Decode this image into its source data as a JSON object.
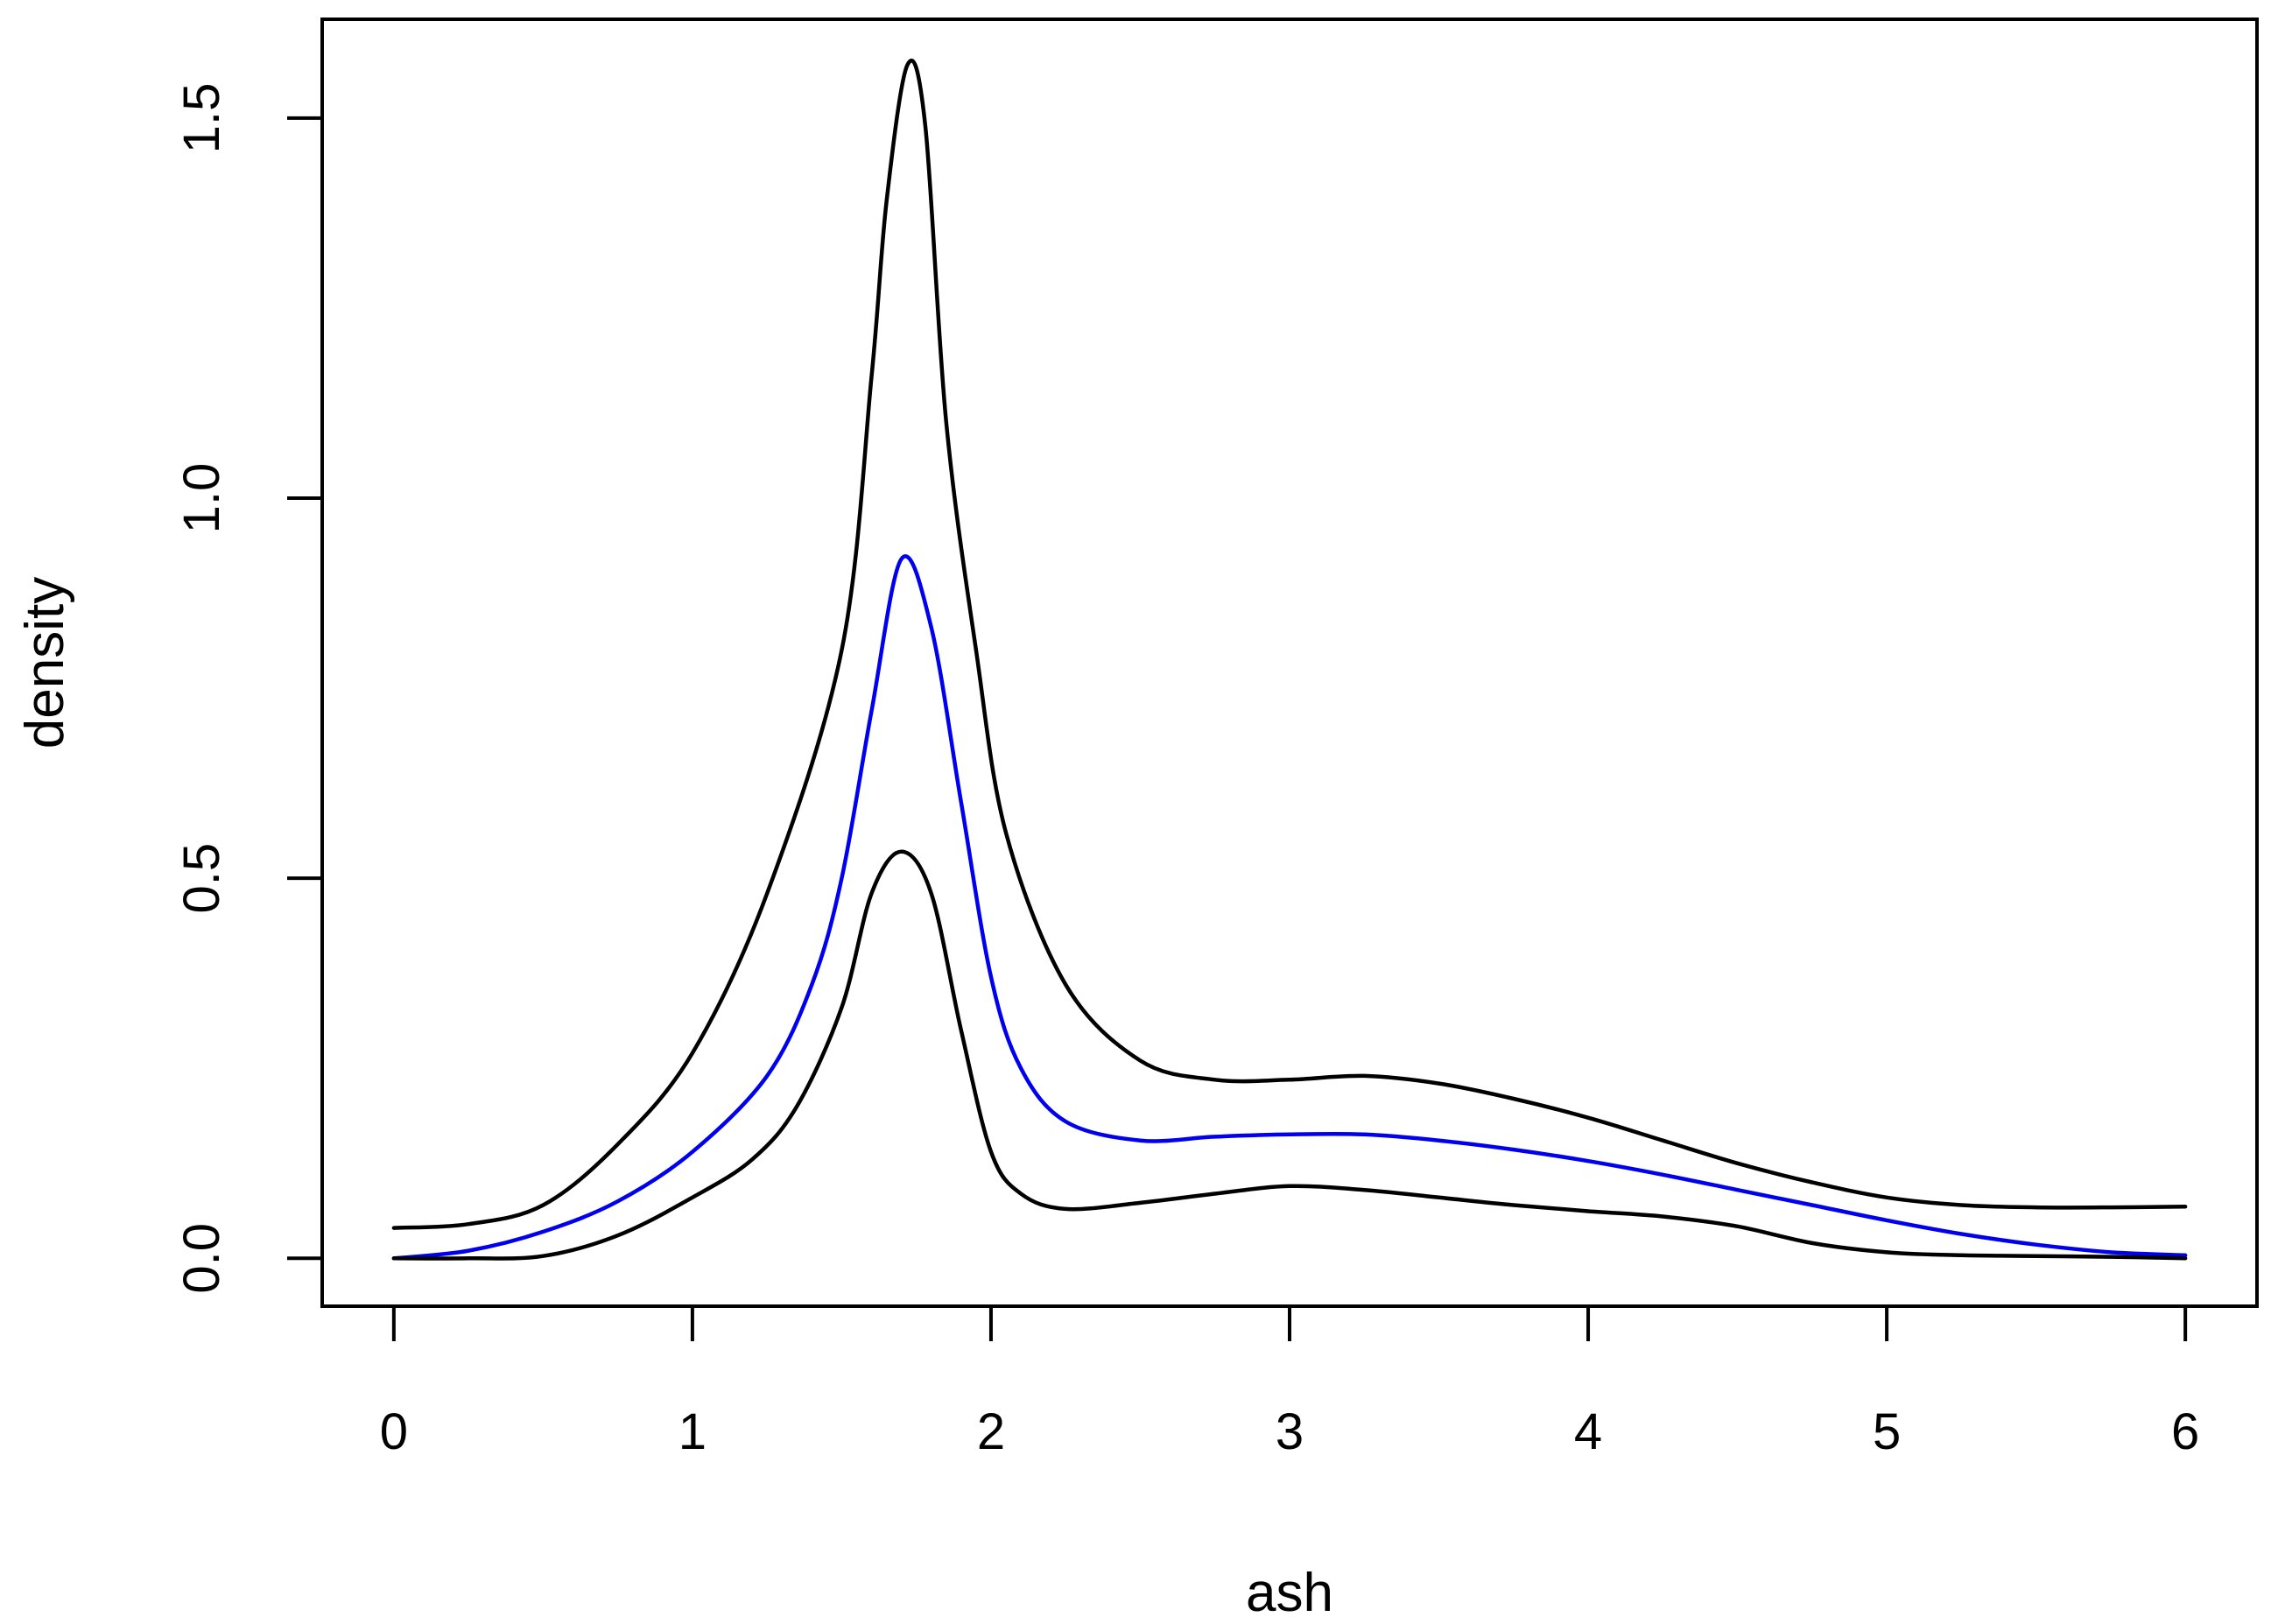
{
  "chart_data": {
    "type": "line",
    "title": "",
    "xlabel": "ash",
    "ylabel": "density",
    "xlim": [
      -0.24,
      6.24
    ],
    "ylim": [
      -0.063,
      1.63
    ],
    "x_ticks": [
      0,
      1,
      2,
      3,
      4,
      5,
      6
    ],
    "x_tick_labels": [
      "0",
      "1",
      "2",
      "3",
      "4",
      "5",
      "6"
    ],
    "y_ticks": [
      0.0,
      0.5,
      1.0,
      1.5
    ],
    "y_tick_labels": [
      "0.0",
      "0.5",
      "1.0",
      "1.5"
    ],
    "grid": false,
    "legend": "none",
    "series": [
      {
        "color": "#000000",
        "x": [
          0,
          0.25,
          0.5,
          0.75,
          1.0,
          1.25,
          1.5,
          1.6,
          1.65,
          1.72,
          1.78,
          1.85,
          1.95,
          2.05,
          2.25,
          2.5,
          2.75,
          3.0,
          3.25,
          3.5,
          3.75,
          4.0,
          4.25,
          4.5,
          4.75,
          5.0,
          5.25,
          5.5,
          5.75,
          6.0
        ],
        "y": [
          0.04,
          0.045,
          0.07,
          0.15,
          0.27,
          0.48,
          0.8,
          1.16,
          1.39,
          1.57,
          1.49,
          1.1,
          0.8,
          0.56,
          0.36,
          0.26,
          0.235,
          0.235,
          0.24,
          0.23,
          0.21,
          0.185,
          0.155,
          0.125,
          0.1,
          0.08,
          0.07,
          0.067,
          0.067,
          0.068
        ]
      },
      {
        "color": "#0000ee",
        "x": [
          0,
          0.25,
          0.5,
          0.75,
          1.0,
          1.25,
          1.4,
          1.5,
          1.6,
          1.7,
          1.8,
          1.9,
          2.0,
          2.1,
          2.25,
          2.5,
          2.75,
          3.0,
          3.25,
          3.5,
          3.75,
          4.0,
          4.25,
          4.5,
          4.75,
          5.0,
          5.25,
          5.5,
          5.75,
          6.0
        ],
        "y": [
          0.0,
          0.01,
          0.035,
          0.075,
          0.14,
          0.24,
          0.36,
          0.5,
          0.72,
          0.92,
          0.83,
          0.6,
          0.37,
          0.25,
          0.18,
          0.155,
          0.16,
          0.163,
          0.163,
          0.155,
          0.143,
          0.128,
          0.11,
          0.09,
          0.07,
          0.05,
          0.032,
          0.018,
          0.008,
          0.004
        ]
      },
      {
        "color": "#000000",
        "x": [
          0,
          0.25,
          0.5,
          0.75,
          1.0,
          1.2,
          1.35,
          1.5,
          1.6,
          1.7,
          1.8,
          1.9,
          2.0,
          2.1,
          2.25,
          2.5,
          2.75,
          3.0,
          3.25,
          3.5,
          3.75,
          4.0,
          4.25,
          4.5,
          4.75,
          5.0,
          5.25,
          5.5,
          5.75,
          6.0
        ],
        "y": [
          0.0,
          0.0,
          0.003,
          0.03,
          0.08,
          0.13,
          0.2,
          0.33,
          0.48,
          0.535,
          0.48,
          0.3,
          0.14,
          0.085,
          0.065,
          0.073,
          0.085,
          0.095,
          0.09,
          0.08,
          0.07,
          0.062,
          0.055,
          0.042,
          0.02,
          0.008,
          0.004,
          0.003,
          0.002,
          0.0
        ]
      }
    ]
  }
}
